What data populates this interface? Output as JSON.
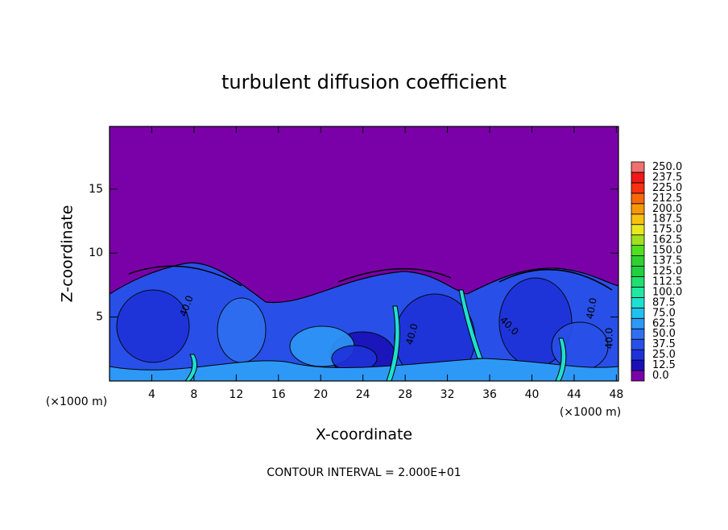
{
  "chart_data": {
    "type": "contour",
    "title": "turbulent diffusion coefficient",
    "xlabel": "X-coordinate",
    "ylabel": "Z-coordinate",
    "x_units_left": "(×1000 m)",
    "x_units_right": "(×1000 m)",
    "footer": "CONTOUR INTERVAL = 2.000E+01",
    "contour_labels": [
      "40.0",
      "40.0",
      "40.0",
      "40.0",
      "40.0"
    ],
    "xlim": [
      0,
      48.2
    ],
    "ylim": [
      0,
      19.9
    ],
    "xticks": [
      4,
      8,
      12,
      16,
      20,
      24,
      28,
      32,
      36,
      40,
      44,
      48
    ],
    "yticks": [
      5,
      10,
      15
    ],
    "colorbar": {
      "levels": [
        {
          "value": 0,
          "label": "0.0"
        },
        12.5,
        {
          "value": 25,
          "label": "25.0"
        },
        37.5,
        {
          "value": 50,
          "label": "50.0"
        },
        62.5,
        {
          "value": 75,
          "label": "75.0"
        },
        87.5,
        {
          "value": 100,
          "label": "100.0"
        },
        112.5,
        {
          "value": 125,
          "label": "125.0"
        },
        137.5,
        {
          "value": 150,
          "label": "150.0"
        },
        162.5,
        {
          "value": 175,
          "label": "175.0"
        },
        187.5,
        {
          "value": 200,
          "label": "200.0"
        },
        212.5,
        {
          "value": 225,
          "label": "225.0"
        },
        237.5,
        {
          "value": 250,
          "label": "250.0"
        }
      ],
      "colors": [
        "#7a00a8",
        "#1a10b8",
        "#1e32d8",
        "#2850e8",
        "#2f70f0",
        "#2e98f6",
        "#20c0f0",
        "#1ee0d0",
        "#20e8a0",
        "#20e070",
        "#20d040",
        "#30d030",
        "#50e020",
        "#a0e020",
        "#e8e820",
        "#f8c010",
        "#f89808",
        "#f86808",
        "#f83010",
        "#f01818",
        "#f07070"
      ]
    }
  }
}
